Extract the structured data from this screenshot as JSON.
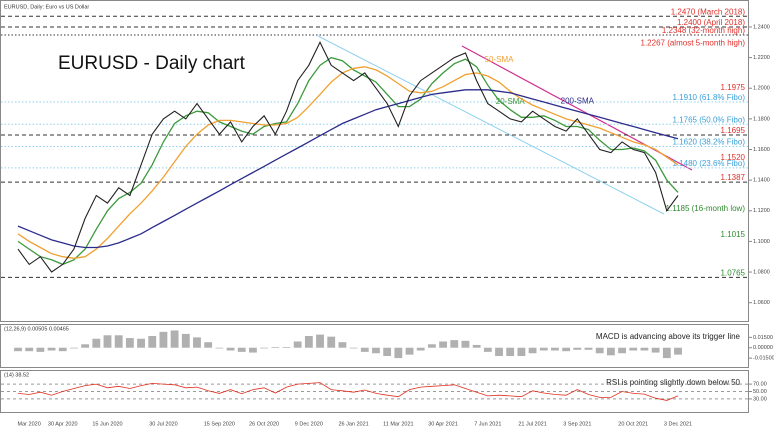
{
  "chart_data": [
    {
      "type": "line",
      "title": "EURUSD - Daily chart",
      "header": "EURUSD, Daily: Euro vs US Dollar",
      "categories": [
        null,
        "Mar 2020",
        null,
        null,
        "30 Apr 2020",
        null,
        null,
        null,
        "15 Jun 2020",
        null,
        null,
        null,
        null,
        "30 Jul 2020",
        null,
        null,
        null,
        null,
        "15 Sep 2020",
        null,
        null,
        null,
        "26 Oct 2020",
        null,
        null,
        null,
        "9 Dec 2020",
        null,
        null,
        null,
        "26 Jan 2021",
        null,
        null,
        null,
        "11 Mar 2021",
        null,
        null,
        null,
        "30 Apr 2021",
        null,
        null,
        null,
        "7 Jun 2021",
        null,
        null,
        null,
        "21 Jul 2021",
        null,
        null,
        null,
        "3 Sep 2021",
        null,
        null,
        null,
        null,
        "20 Oct 2021",
        null,
        null,
        null,
        "3 Dec 2021"
      ],
      "values": [
        1.095,
        1.085,
        1.09,
        1.08,
        1.085,
        1.095,
        1.115,
        1.13,
        1.125,
        1.135,
        1.13,
        1.15,
        1.17,
        1.18,
        1.185,
        1.18,
        1.19,
        1.18,
        1.17,
        1.178,
        1.165,
        1.175,
        1.182,
        1.17,
        1.185,
        1.205,
        1.215,
        1.23,
        1.215,
        1.21,
        1.205,
        1.21,
        1.2,
        1.19,
        1.175,
        1.195,
        1.205,
        1.21,
        1.215,
        1.22,
        1.223,
        1.205,
        1.19,
        1.185,
        1.18,
        1.178,
        1.185,
        1.18,
        1.175,
        1.172,
        1.18,
        1.17,
        1.16,
        1.158,
        1.165,
        1.16,
        1.158,
        1.145,
        1.12,
        1.13
      ],
      "color": "#222222",
      "series": [
        {
          "name": "20-SMA",
          "color": "#3c9a3c",
          "values": [
            1.1,
            1.095,
            1.09,
            1.088,
            1.085,
            1.088,
            1.095,
            1.108,
            1.12,
            1.128,
            1.132,
            1.138,
            1.15,
            1.165,
            1.177,
            1.182,
            1.185,
            1.184,
            1.178,
            1.175,
            1.172,
            1.17,
            1.175,
            1.177,
            1.178,
            1.19,
            1.205,
            1.215,
            1.22,
            1.218,
            1.212,
            1.208,
            1.204,
            1.196,
            1.188,
            1.188,
            1.193,
            1.203,
            1.21,
            1.216,
            1.219,
            1.214,
            1.202,
            1.192,
            1.186,
            1.181,
            1.181,
            1.182,
            1.179,
            1.175,
            1.175,
            1.173,
            1.166,
            1.16,
            1.16,
            1.161,
            1.159,
            1.153,
            1.14,
            1.132
          ]
        },
        {
          "name": "50-SMA",
          "color": "#f0a030",
          "values": [
            1.105,
            1.1,
            1.096,
            1.092,
            1.09,
            1.089,
            1.09,
            1.095,
            1.102,
            1.11,
            1.118,
            1.125,
            1.133,
            1.142,
            1.152,
            1.162,
            1.17,
            1.176,
            1.179,
            1.179,
            1.178,
            1.177,
            1.176,
            1.176,
            1.177,
            1.181,
            1.188,
            1.196,
            1.204,
            1.21,
            1.213,
            1.214,
            1.212,
            1.208,
            1.203,
            1.198,
            1.197,
            1.198,
            1.201,
            1.205,
            1.209,
            1.21,
            1.208,
            1.204,
            1.198,
            1.193,
            1.189,
            1.186,
            1.183,
            1.18,
            1.178,
            1.176,
            1.174,
            1.171,
            1.168,
            1.165,
            1.163,
            1.16,
            1.155,
            1.15
          ]
        },
        {
          "name": "200-SMA",
          "color": "#2b2b8c",
          "values": [
            1.11,
            1.107,
            1.104,
            1.101,
            1.099,
            1.097,
            1.096,
            1.096,
            1.097,
            1.099,
            1.102,
            1.105,
            1.109,
            1.113,
            1.117,
            1.121,
            1.125,
            1.129,
            1.133,
            1.137,
            1.141,
            1.145,
            1.149,
            1.153,
            1.157,
            1.161,
            1.165,
            1.169,
            1.173,
            1.177,
            1.18,
            1.183,
            1.186,
            1.188,
            1.19,
            1.192,
            1.194,
            1.196,
            1.197,
            1.198,
            1.199,
            1.199,
            1.199,
            1.198,
            1.197,
            1.195,
            1.193,
            1.191,
            1.189,
            1.187,
            1.185,
            1.183,
            1.181,
            1.179,
            1.177,
            1.175,
            1.173,
            1.171,
            1.169,
            1.167
          ]
        }
      ],
      "ylim": [
        1.05,
        1.255
      ],
      "yticks": [
        {
          "value": 1.06,
          "label": "1.0600"
        },
        {
          "value": 1.08,
          "label": "1.0800"
        },
        {
          "value": 1.1,
          "label": "1.1000"
        },
        {
          "value": 1.12,
          "label": "1.1200"
        },
        {
          "value": 1.14,
          "label": "1.1400"
        },
        {
          "value": 1.16,
          "label": "1.1600"
        },
        {
          "value": 1.18,
          "label": "1.1800"
        },
        {
          "value": 1.2,
          "label": "1.2000"
        },
        {
          "value": 1.22,
          "label": "1.2200"
        },
        {
          "value": 1.24,
          "label": "1.2400"
        }
      ],
      "levels": [
        {
          "value": 1.247,
          "label": "1.2470 (March 2018)",
          "color": "#e0302a",
          "style": "dashed"
        },
        {
          "value": 1.24,
          "label": "1.2400 (April 2018)",
          "color": "#e0302a",
          "style": "dashed"
        },
        {
          "value": 1.2348,
          "label": "1.2348 (32-month high)",
          "color": "#e0302a",
          "style": "dotted"
        },
        {
          "value": 1.2267,
          "label": "1.2267 (almost 5-month high)",
          "color": "#e0302a",
          "style": "none"
        },
        {
          "value": 1.1975,
          "label": "1.1975",
          "color": "#e0302a",
          "style": "none"
        },
        {
          "value": 1.191,
          "label": "1.1910 (61.8% Fibo)",
          "color": "#3aa0d8",
          "style": "dotted"
        },
        {
          "value": 1.1765,
          "label": "1.1765 (50.0% Fibo)",
          "color": "#3aa0d8",
          "style": "dotted"
        },
        {
          "value": 1.1695,
          "label": "1.1695",
          "color": "#e0302a",
          "style": "dashed"
        },
        {
          "value": 1.162,
          "label": "1.1620 (38.2% Fibo)",
          "color": "#3aa0d8",
          "style": "dotted"
        },
        {
          "value": 1.152,
          "label": "1.1520",
          "color": "#e0302a",
          "style": "none"
        },
        {
          "value": 1.148,
          "label": "1.1480 (23.6% Fibo)",
          "color": "#3aa0d8",
          "style": "dotted"
        },
        {
          "value": 1.1387,
          "label": "1.1387",
          "color": "#e0302a",
          "style": "dashed"
        },
        {
          "value": 1.1185,
          "label": "1.1185 (16-month low)",
          "color": "#2f8a2f",
          "style": "none"
        },
        {
          "value": 1.1015,
          "label": "1.1015",
          "color": "#2f8a2f",
          "style": "none"
        },
        {
          "value": 1.0765,
          "label": "1.0765",
          "color": "#2f8a2f",
          "style": "dashed"
        }
      ]
    },
    {
      "type": "bar",
      "header": "(12,26,9) 0.00505 0.00465",
      "annotation": "MACD is advancing above its trigger line",
      "values": [
        -0.005,
        -0.005,
        -0.006,
        -0.004,
        -0.005,
        -0.001,
        0.005,
        0.013,
        0.018,
        0.018,
        0.014,
        0.013,
        0.017,
        0.023,
        0.025,
        0.02,
        0.015,
        0.008,
        -0.001,
        -0.004,
        -0.006,
        -0.007,
        -0.001,
        0.001,
        0.001,
        0.009,
        0.017,
        0.019,
        0.016,
        0.008,
        -0.001,
        -0.006,
        -0.008,
        -0.012,
        -0.015,
        -0.01,
        -0.004,
        0.005,
        0.009,
        0.011,
        0.01,
        0.004,
        -0.006,
        -0.012,
        -0.012,
        -0.012,
        -0.008,
        -0.004,
        -0.004,
        -0.005,
        -0.003,
        -0.003,
        -0.008,
        -0.011,
        -0.008,
        -0.004,
        -0.004,
        -0.007,
        -0.015,
        -0.01
      ],
      "color": "#b0b0b0",
      "ylim": [
        -0.025,
        0.03
      ],
      "yticks": [
        {
          "value": 0.015,
          "label": "0.01500"
        },
        {
          "value": 0,
          "label": "0.00000"
        },
        {
          "value": -0.015,
          "label": "-0.01500"
        }
      ]
    },
    {
      "type": "line",
      "header": "(14) 38.52",
      "annotation": "RSI is pointing slightly down below 50",
      "values": [
        45,
        42,
        48,
        40,
        50,
        58,
        66,
        70,
        60,
        64,
        58,
        66,
        72,
        70,
        68,
        60,
        62,
        52,
        45,
        55,
        44,
        55,
        60,
        46,
        62,
        70,
        72,
        74,
        55,
        52,
        48,
        54,
        45,
        40,
        36,
        55,
        62,
        64,
        66,
        68,
        58,
        48,
        38,
        40,
        38,
        36,
        52,
        46,
        42,
        40,
        55,
        42,
        34,
        34,
        50,
        45,
        43,
        32,
        26,
        38
      ],
      "color": "#e03020",
      "ylim": [
        0,
        100
      ],
      "yticks": [
        {
          "value": 70,
          "label": "70.00"
        },
        {
          "value": 50,
          "label": "50.00"
        },
        {
          "value": 30,
          "label": "30.00"
        }
      ]
    }
  ]
}
